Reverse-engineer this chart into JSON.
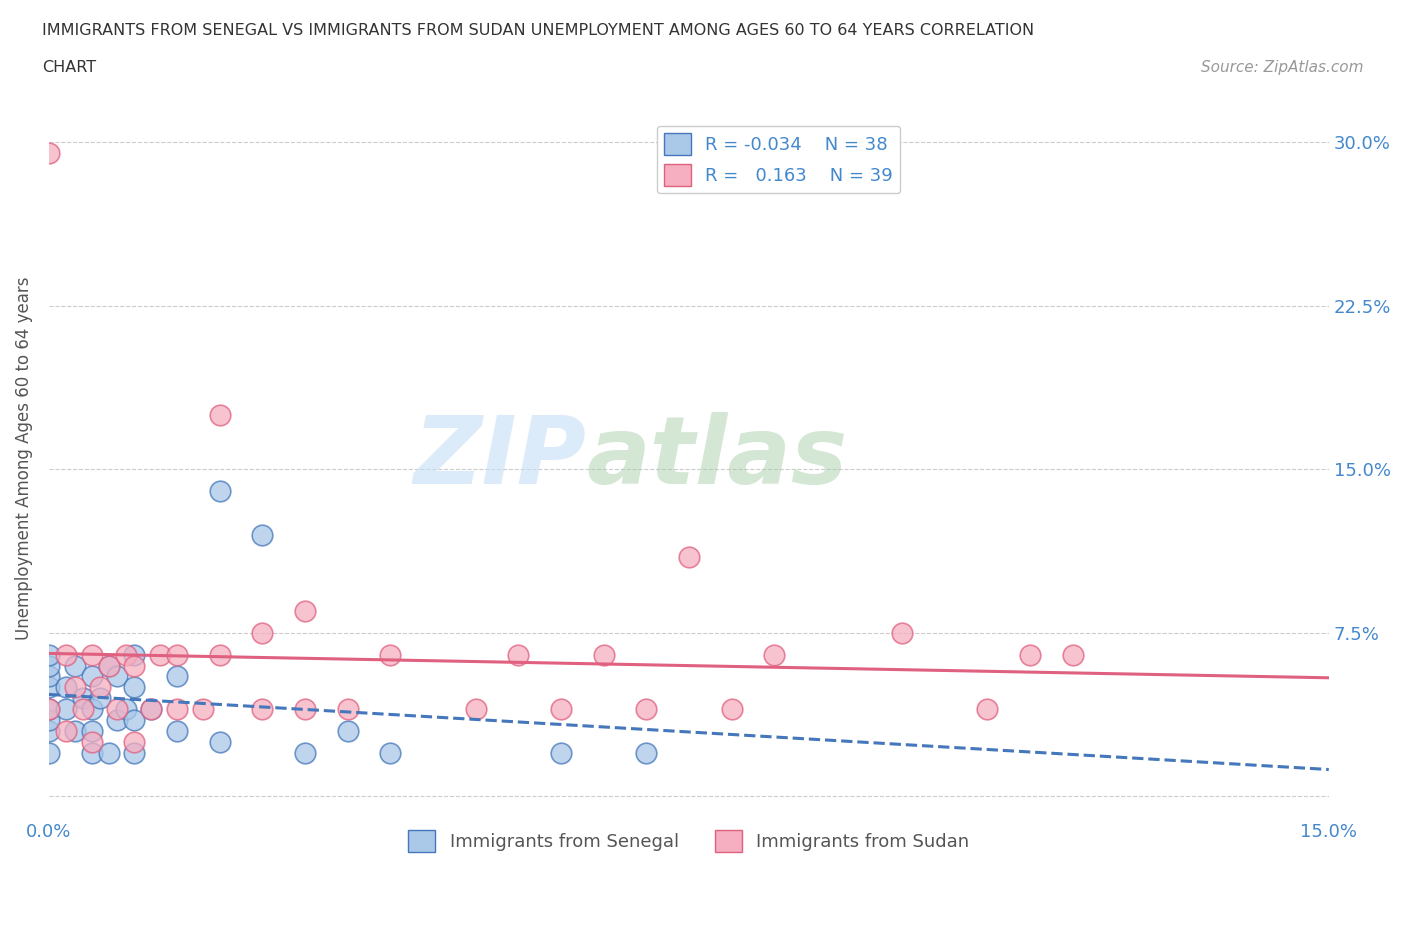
{
  "title_line1": "IMMIGRANTS FROM SENEGAL VS IMMIGRANTS FROM SUDAN UNEMPLOYMENT AMONG AGES 60 TO 64 YEARS CORRELATION",
  "title_line2": "CHART",
  "source": "Source: ZipAtlas.com",
  "ylabel": "Unemployment Among Ages 60 to 64 years",
  "xlim": [
    0.0,
    0.15
  ],
  "ylim": [
    -0.01,
    0.32
  ],
  "legend_R_senegal": "-0.034",
  "legend_N_senegal": "38",
  "legend_R_sudan": "0.163",
  "legend_N_sudan": "39",
  "color_senegal": "#aac8e8",
  "color_sudan": "#f5afc0",
  "color_senegal_line": "#4477bb",
  "color_sudan_line": "#e06080",
  "color_text": "#4488cc",
  "watermark_zip": "ZIP",
  "watermark_atlas": "atlas",
  "background_color": "#ffffff",
  "grid_color": "#cccccc",
  "senegal_x": [
    0.0,
    0.0,
    0.0,
    0.0,
    0.0,
    0.0,
    0.0,
    0.0,
    0.002,
    0.002,
    0.003,
    0.003,
    0.004,
    0.005,
    0.005,
    0.005,
    0.005,
    0.006,
    0.007,
    0.007,
    0.008,
    0.008,
    0.009,
    0.01,
    0.01,
    0.01,
    0.01,
    0.012,
    0.015,
    0.015,
    0.02,
    0.02,
    0.025,
    0.03,
    0.035,
    0.04,
    0.06,
    0.07
  ],
  "senegal_y": [
    0.02,
    0.03,
    0.035,
    0.04,
    0.05,
    0.055,
    0.06,
    0.065,
    0.04,
    0.05,
    0.03,
    0.06,
    0.045,
    0.02,
    0.03,
    0.04,
    0.055,
    0.045,
    0.02,
    0.06,
    0.035,
    0.055,
    0.04,
    0.02,
    0.035,
    0.05,
    0.065,
    0.04,
    0.03,
    0.055,
    0.025,
    0.14,
    0.12,
    0.02,
    0.03,
    0.02,
    0.02,
    0.02
  ],
  "sudan_x": [
    0.0,
    0.0,
    0.002,
    0.002,
    0.003,
    0.004,
    0.005,
    0.005,
    0.006,
    0.007,
    0.008,
    0.009,
    0.01,
    0.01,
    0.012,
    0.013,
    0.015,
    0.015,
    0.018,
    0.02,
    0.02,
    0.025,
    0.025,
    0.03,
    0.03,
    0.035,
    0.04,
    0.05,
    0.055,
    0.06,
    0.065,
    0.07,
    0.075,
    0.08,
    0.085,
    0.1,
    0.11,
    0.115,
    0.12
  ],
  "sudan_y": [
    0.295,
    0.04,
    0.03,
    0.065,
    0.05,
    0.04,
    0.025,
    0.065,
    0.05,
    0.06,
    0.04,
    0.065,
    0.025,
    0.06,
    0.04,
    0.065,
    0.04,
    0.065,
    0.04,
    0.065,
    0.175,
    0.04,
    0.075,
    0.04,
    0.085,
    0.04,
    0.065,
    0.04,
    0.065,
    0.04,
    0.065,
    0.04,
    0.11,
    0.04,
    0.065,
    0.075,
    0.04,
    0.065,
    0.065
  ]
}
